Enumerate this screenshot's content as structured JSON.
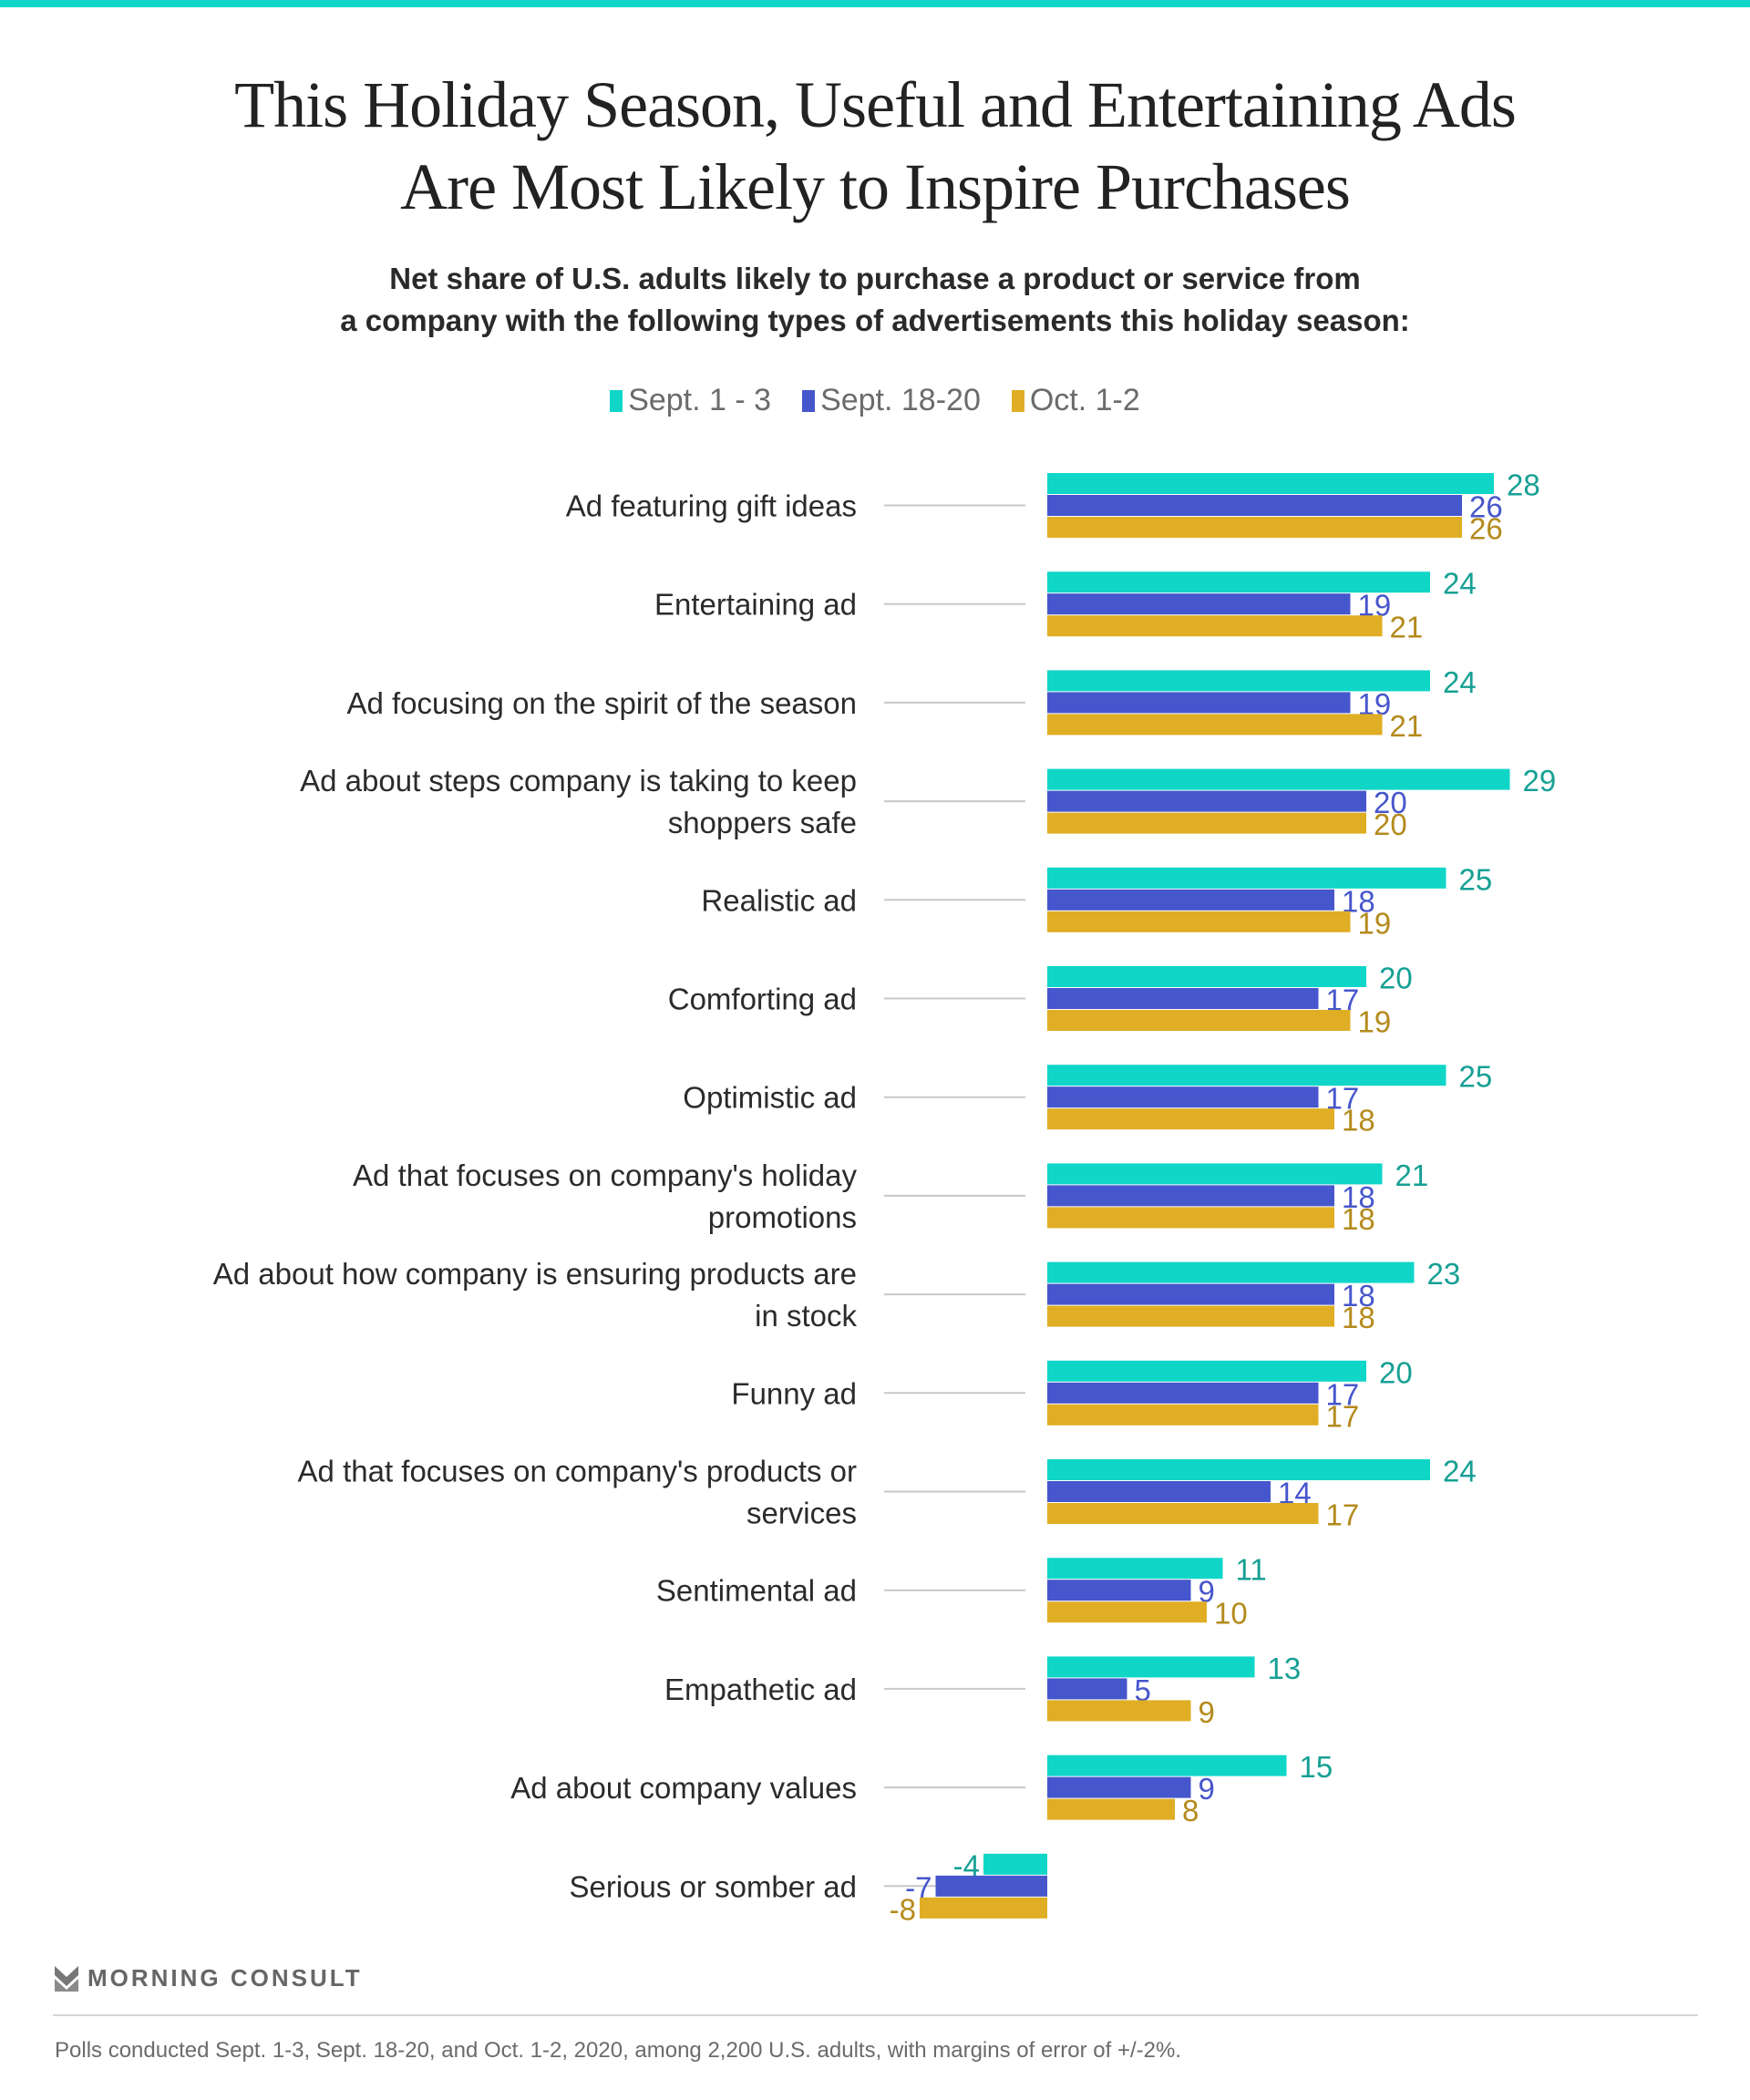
{
  "header": {
    "title_line1": "This Holiday Season, Useful and Entertaining Ads",
    "title_line2": "Are Most Likely to Inspire Purchases",
    "subtitle_line1": "Net share of U.S. adults likely to purchase a product or service from",
    "subtitle_line2": "a company with the following types of advertisements this holiday season:"
  },
  "legend": [
    {
      "label": "Sept. 1 - 3",
      "color": "#10d6c8"
    },
    {
      "label": "Sept. 18-20",
      "color": "#4656cc"
    },
    {
      "label": "Oct. 1-2",
      "color": "#e0ae24"
    }
  ],
  "footer": {
    "brand": "MORNING CONSULT",
    "note": "Polls conducted Sept. 1-3, Sept. 18-20, and Oct. 1-2, 2020, among 2,200 U.S. adults, with margins of error of +/-2%."
  },
  "chart_data": {
    "type": "bar",
    "orientation": "horizontal",
    "title": "This Holiday Season, Useful and Entertaining Ads Are Most Likely to Inspire Purchases",
    "subtitle": "Net share of U.S. adults likely to purchase a product or service from a company with the following types of advertisements this holiday season:",
    "xlabel": "",
    "ylabel": "",
    "grid": false,
    "legend_position": "top-center",
    "xlim": [
      -8,
      29
    ],
    "categories": [
      [
        "Ad featuring gift ideas"
      ],
      [
        "Entertaining ad"
      ],
      [
        "Ad focusing on the spirit of the season"
      ],
      [
        "Ad about steps company is taking to keep",
        "shoppers safe"
      ],
      [
        "Realistic ad"
      ],
      [
        "Comforting ad"
      ],
      [
        "Optimistic ad"
      ],
      [
        "Ad that focuses on company's holiday",
        "promotions"
      ],
      [
        "Ad about how company is ensuring products are",
        "in stock"
      ],
      [
        "Funny ad"
      ],
      [
        "Ad that focuses on company's products or",
        "services"
      ],
      [
        "Sentimental ad"
      ],
      [
        "Empathetic ad"
      ],
      [
        "Ad about company values"
      ],
      [
        "Serious or somber ad"
      ]
    ],
    "series": [
      {
        "name": "Sept. 1 - 3",
        "color": "#10d6c8",
        "label_color": "#16a094",
        "values": [
          28,
          24,
          24,
          29,
          25,
          20,
          25,
          21,
          23,
          20,
          24,
          11,
          13,
          15,
          -4
        ]
      },
      {
        "name": "Sept. 18-20",
        "color": "#4656cc",
        "label_color": "#4656cc",
        "values": [
          26,
          19,
          19,
          20,
          18,
          17,
          17,
          18,
          18,
          17,
          14,
          9,
          5,
          9,
          -7
        ]
      },
      {
        "name": "Oct. 1-2",
        "color": "#e0ae24",
        "label_color": "#b48a1c",
        "values": [
          26,
          21,
          21,
          20,
          19,
          19,
          18,
          18,
          18,
          17,
          17,
          10,
          9,
          8,
          -8
        ]
      }
    ]
  }
}
